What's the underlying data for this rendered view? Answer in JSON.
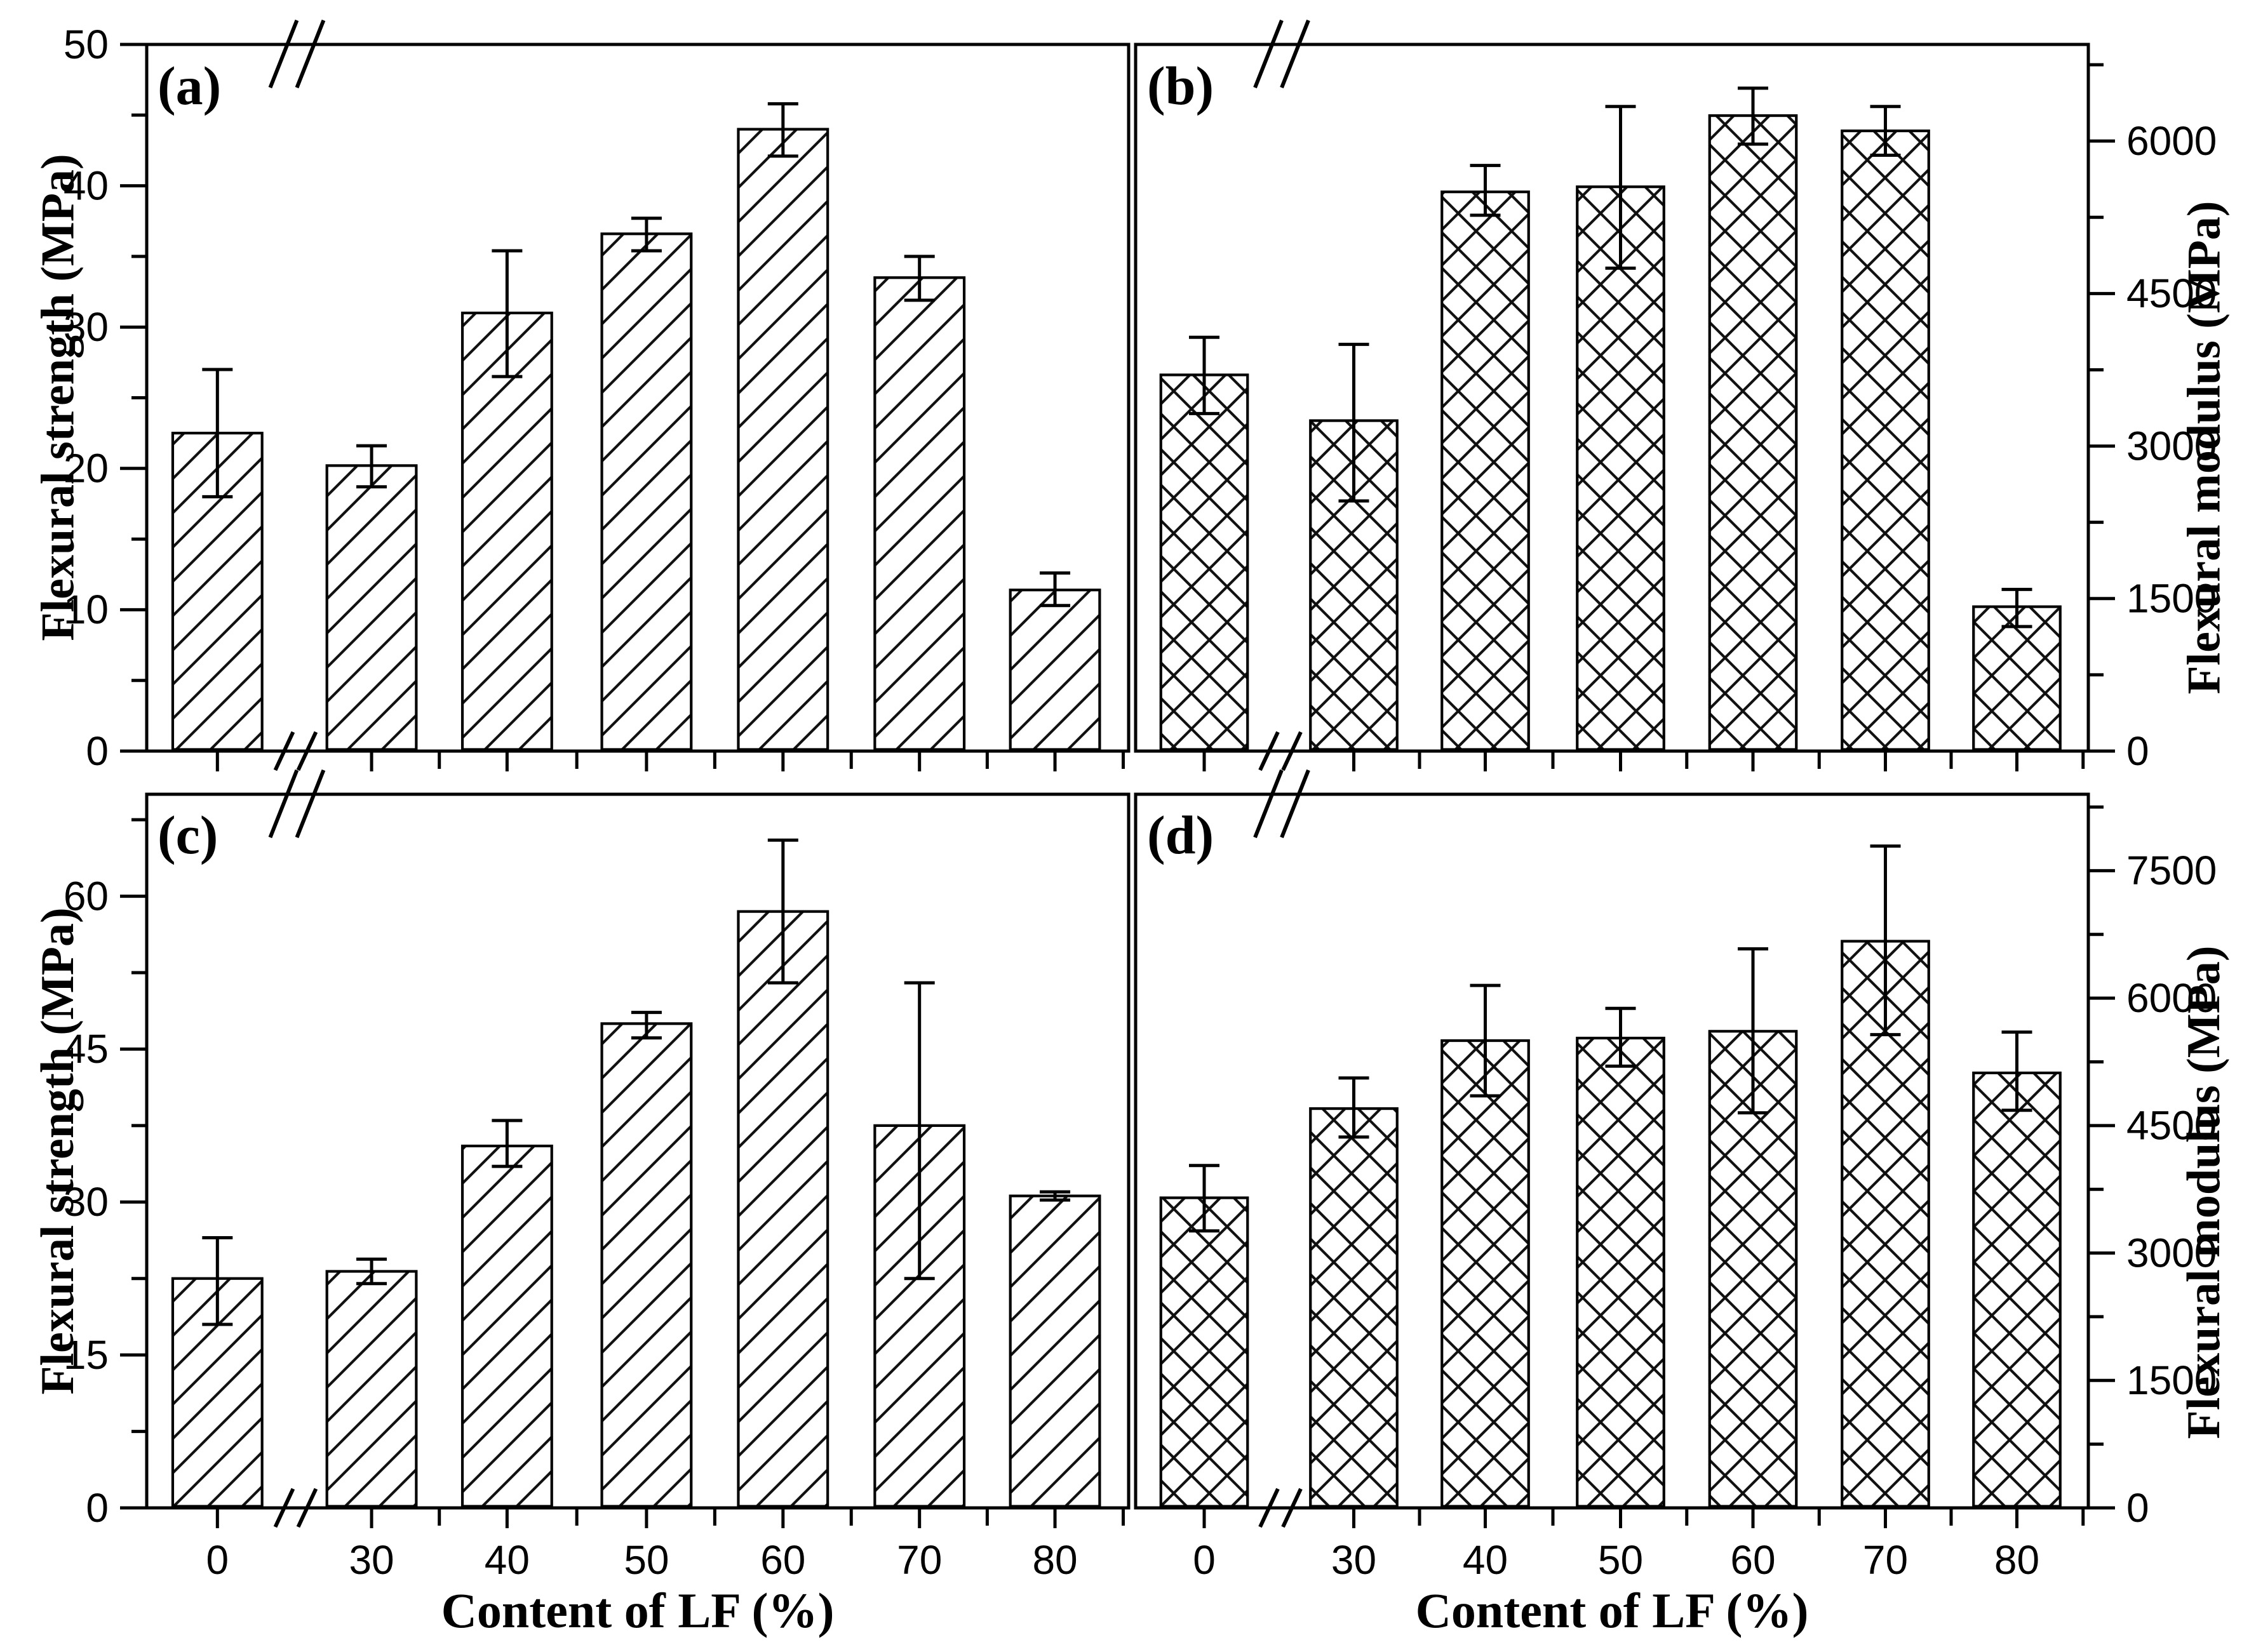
{
  "chart_data": [
    {
      "type": "bar",
      "panel_label": "(a)",
      "ylabel": "Flexural strength (MPa)",
      "xlabel": "Content of LF (%)",
      "axis_side": "left",
      "hatch": "diagonal",
      "grid": false,
      "x_tick_labels_visible": false,
      "x_axis_break_after": "0",
      "categories": [
        "0",
        "30",
        "40",
        "50",
        "60",
        "70",
        "80"
      ],
      "values": [
        22.5,
        20.2,
        31.0,
        36.6,
        44.0,
        33.5,
        11.4
      ],
      "error_up": [
        4.5,
        1.4,
        4.4,
        1.1,
        1.8,
        1.5,
        1.2
      ],
      "error_down": [
        4.5,
        1.5,
        4.5,
        1.2,
        1.9,
        1.6,
        1.1
      ],
      "ylim": [
        0,
        50
      ],
      "yticks": [
        0,
        10,
        20,
        30,
        40,
        50
      ],
      "y_minor_step": 5
    },
    {
      "type": "bar",
      "panel_label": "(b)",
      "ylabel": "Flexural modulus (MPa)",
      "xlabel": "Content of LF (%)",
      "axis_side": "right",
      "hatch": "crosshatch",
      "grid": false,
      "x_tick_labels_visible": false,
      "x_axis_break_after": "0",
      "categories": [
        "0",
        "30",
        "40",
        "50",
        "60",
        "70",
        "80"
      ],
      "values": [
        3700,
        3250,
        5500,
        5550,
        6250,
        6100,
        1420
      ],
      "error_up": [
        370,
        750,
        260,
        790,
        270,
        240,
        170
      ],
      "error_down": [
        380,
        790,
        230,
        800,
        280,
        240,
        195
      ],
      "ylim": [
        0,
        6950
      ],
      "yticks": [
        0,
        1500,
        3000,
        4500,
        6000
      ],
      "y_minor_step": 750
    },
    {
      "type": "bar",
      "panel_label": "(c)",
      "ylabel": "Flexural strength (MPa)",
      "xlabel": "Content of LF (%)",
      "axis_side": "left",
      "hatch": "diagonal",
      "grid": false,
      "x_tick_labels_visible": true,
      "x_axis_break_after": "0",
      "categories": [
        "0",
        "30",
        "40",
        "50",
        "60",
        "70",
        "80"
      ],
      "values": [
        22.5,
        23.2,
        35.5,
        47.5,
        58.5,
        37.5,
        30.6
      ],
      "error_up": [
        4.0,
        1.2,
        2.5,
        1.1,
        7.0,
        14.0,
        0.4
      ],
      "error_down": [
        4.5,
        1.2,
        2.0,
        1.4,
        7.0,
        15.0,
        0.4
      ],
      "ylim": [
        0,
        70
      ],
      "yticks": [
        0,
        15,
        30,
        45,
        60
      ],
      "y_minor_step": 7.5
    },
    {
      "type": "bar",
      "panel_label": "(d)",
      "ylabel": "Flexural modulus (MPa)",
      "xlabel": "Content of LF (%)",
      "axis_side": "right",
      "hatch": "crosshatch",
      "grid": false,
      "x_tick_labels_visible": true,
      "x_axis_break_after": "0",
      "categories": [
        "0",
        "30",
        "40",
        "50",
        "60",
        "70",
        "80"
      ],
      "values": [
        3650,
        4700,
        5500,
        5530,
        5610,
        6670,
        5120
      ],
      "error_up": [
        380,
        360,
        650,
        350,
        970,
        1120,
        480
      ],
      "error_down": [
        390,
        335,
        650,
        330,
        960,
        1100,
        440
      ],
      "ylim": [
        0,
        8400
      ],
      "yticks": [
        0,
        1500,
        3000,
        4500,
        6000,
        7500
      ],
      "y_minor_step": 750
    }
  ]
}
